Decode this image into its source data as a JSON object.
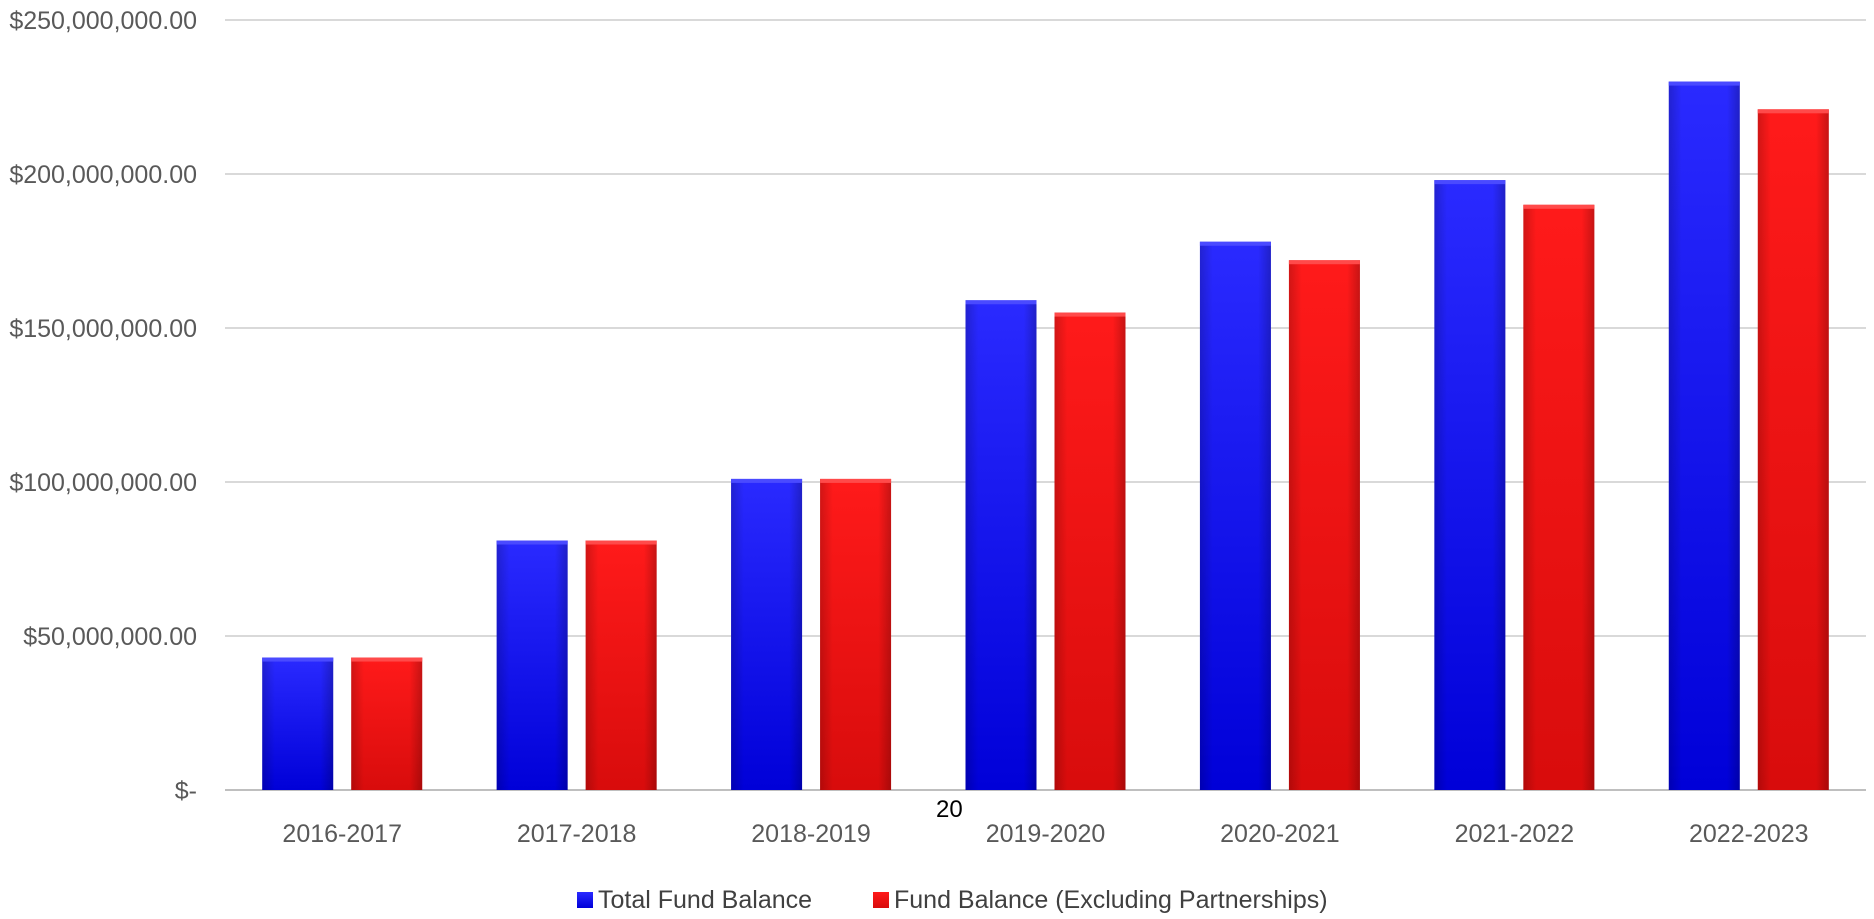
{
  "page_number": "20",
  "chart_data": {
    "type": "bar",
    "categories": [
      "2016-2017",
      "2017-2018",
      "2018-2019",
      "2019-2020",
      "2020-2021",
      "2021-2022",
      "2022-2023"
    ],
    "series": [
      {
        "name": "Total Fund Balance",
        "color": "#1010f0",
        "values": [
          43000000,
          81000000,
          101000000,
          159000000,
          178000000,
          198000000,
          230000000
        ]
      },
      {
        "name": "Fund Balance (Excluding Partnerships)",
        "color": "#f01010",
        "values": [
          43000000,
          81000000,
          101000000,
          155000000,
          172000000,
          190000000,
          221000000
        ]
      }
    ],
    "ylim": [
      0,
      250000000
    ],
    "yticks": [
      0,
      50000000,
      100000000,
      150000000,
      200000000,
      250000000
    ],
    "ytick_labels": [
      "$-",
      "$50,000,000.00",
      "$100,000,000.00",
      "$150,000,000.00",
      "$200,000,000.00",
      "$250,000,000.00"
    ],
    "grid": true,
    "legend_position": "bottom",
    "title": "",
    "xlabel": "",
    "ylabel": ""
  }
}
